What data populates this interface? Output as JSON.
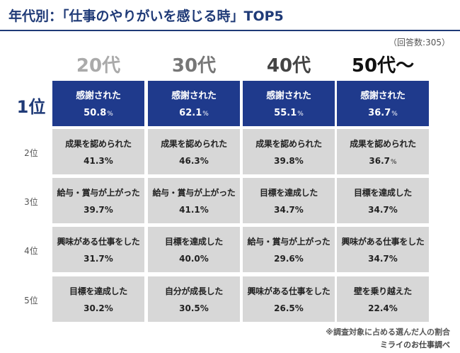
{
  "header": {
    "title": "年代別：「仕事のやりがいを感じる時」TOP5",
    "respondents": "（回答数:305）",
    "footnote": "※調査対象に占める選んだ人の割合",
    "source": "ミライのお仕事調べ"
  },
  "colors": {
    "navy": "#1f3a77",
    "top_cell": "#1f3a8c",
    "cell": "#d7d7d7",
    "col_20_header": "#aaaaaa",
    "col_30_header": "#777777",
    "col_40_header": "#444444",
    "col_50_header": "#111111"
  },
  "chart_data": {
    "type": "table",
    "columns": [
      "20代",
      "30代",
      "40代",
      "50代～"
    ],
    "rows": [
      "1位",
      "2位",
      "3位",
      "4位",
      "5位"
    ],
    "unit": "%",
    "cells": [
      [
        {
          "label": "感謝された",
          "value": "50.8"
        },
        {
          "label": "感謝された",
          "value": "62.1"
        },
        {
          "label": "感謝された",
          "value": "55.1"
        },
        {
          "label": "感謝された",
          "value": "36.7"
        }
      ],
      [
        {
          "label": "成果を認められた",
          "value": "41.3%"
        },
        {
          "label": "成果を認められた",
          "value": "46.3%"
        },
        {
          "label": "成果を認められた",
          "value": "39.8%"
        },
        {
          "label": "成果を認められた",
          "value": "36.7"
        }
      ],
      [
        {
          "label": "給与・賞与が上がった",
          "value": "39.7%"
        },
        {
          "label": "給与・賞与が上がった",
          "value": "41.1%"
        },
        {
          "label": "目標を達成した",
          "value": "34.7%"
        },
        {
          "label": "目標を達成した",
          "value": "34.7%"
        }
      ],
      [
        {
          "label": "興味がある仕事をした",
          "value": "31.7%"
        },
        {
          "label": "目標を達成した",
          "value": "40.0%"
        },
        {
          "label": "給与・賞与が上がった",
          "value": "29.6%"
        },
        {
          "label": "興味がある仕事をした",
          "value": "34.7%"
        }
      ],
      [
        {
          "label": "目標を達成した",
          "value": "30.2%"
        },
        {
          "label": "自分が成長した",
          "value": "30.5%"
        },
        {
          "label": "興味がある仕事をした",
          "value": "26.5%"
        },
        {
          "label": "壁を乗り越えた",
          "value": "22.4%"
        }
      ]
    ]
  }
}
